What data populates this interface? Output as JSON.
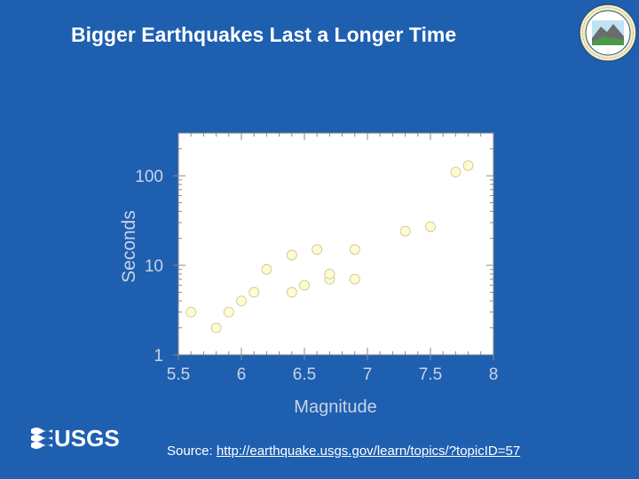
{
  "slide": {
    "title": "Bigger Earthquakes Last a Longer Time",
    "source_label": "Source:",
    "source_url": "http://earthquake.usgs.gov/learn/topics/?topicID=57",
    "logo_text": "USGS"
  },
  "colors": {
    "background": "#1e5fb0",
    "plot_background": "#ffffff",
    "point": "#fffbd0",
    "point_stroke": "#c9c48a",
    "text": "#ffffff"
  },
  "chart_data": {
    "type": "scatter",
    "title": "",
    "xlabel": "Magnitude",
    "ylabel": "Seconds",
    "xlim": [
      5.5,
      8
    ],
    "ylim": [
      1,
      300
    ],
    "yscale": "log",
    "x_ticks": [
      "5.5",
      "6",
      "6.5",
      "7",
      "7.5",
      "8"
    ],
    "x_tick_values": [
      5.5,
      6,
      6.5,
      7,
      7.5,
      8
    ],
    "y_ticks": [
      "1",
      "10",
      "100"
    ],
    "y_tick_values": [
      1,
      10,
      100
    ],
    "grid": false,
    "series": [
      {
        "points": [
          {
            "x": 5.6,
            "y": 3.0
          },
          {
            "x": 5.8,
            "y": 2.0
          },
          {
            "x": 5.9,
            "y": 3.0
          },
          {
            "x": 6.0,
            "y": 4.0
          },
          {
            "x": 6.1,
            "y": 5.0
          },
          {
            "x": 6.2,
            "y": 9.0
          },
          {
            "x": 6.4,
            "y": 5.0
          },
          {
            "x": 6.4,
            "y": 13.0
          },
          {
            "x": 6.5,
            "y": 6.0
          },
          {
            "x": 6.6,
            "y": 15.0
          },
          {
            "x": 6.7,
            "y": 7.0
          },
          {
            "x": 6.7,
            "y": 8.0
          },
          {
            "x": 6.9,
            "y": 7.0
          },
          {
            "x": 6.9,
            "y": 15.0
          },
          {
            "x": 7.3,
            "y": 24.0
          },
          {
            "x": 7.5,
            "y": 27.0
          },
          {
            "x": 7.7,
            "y": 110.0
          },
          {
            "x": 7.8,
            "y": 130.0
          }
        ]
      }
    ]
  }
}
